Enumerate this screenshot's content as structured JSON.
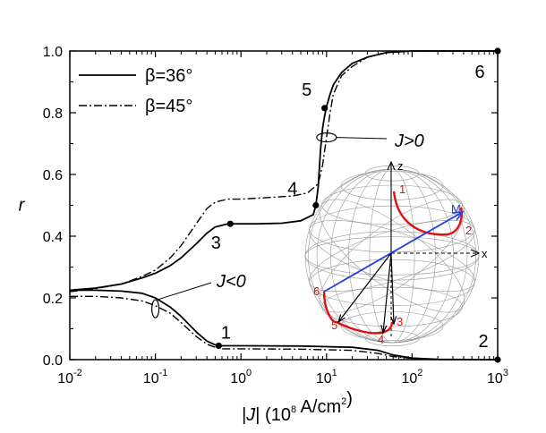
{
  "chart_data": {
    "type": "line",
    "xscale": "log",
    "xlim": [
      0.01,
      1000
    ],
    "ylim": [
      0.0,
      1.0
    ],
    "xlabel": "|J| (10^8 A/cm^2)",
    "ylabel": "r",
    "x_tick_labels": [
      {
        "value": 0.01,
        "base": "10",
        "exp": "-2"
      },
      {
        "value": 0.1,
        "base": "10",
        "exp": "-1"
      },
      {
        "value": 1,
        "base": "10",
        "exp": "0"
      },
      {
        "value": 10,
        "base": "10",
        "exp": "1"
      },
      {
        "value": 100,
        "base": "10",
        "exp": "2"
      },
      {
        "value": 1000,
        "base": "10",
        "exp": "3"
      }
    ],
    "y_ticks": [
      0.0,
      0.2,
      0.4,
      0.6,
      0.8,
      1.0
    ],
    "y_tick_labels": [
      "0.0",
      "0.2",
      "0.4",
      "0.6",
      "0.8",
      "1.0"
    ],
    "legend": [
      {
        "label": "β=36°",
        "style": "solid"
      },
      {
        "label": "β=45°",
        "style": "dash-dot"
      }
    ],
    "series": [
      {
        "name": "β=36°, J>0",
        "style": "solid",
        "x": [
          0.01,
          0.02,
          0.04,
          0.07,
          0.1,
          0.15,
          0.2,
          0.3,
          0.4,
          0.5,
          0.7,
          1,
          1.5,
          3,
          5,
          7,
          7.5,
          8,
          8.5,
          9,
          9.5,
          10,
          11,
          12,
          15,
          20,
          30,
          50,
          100,
          200,
          1000
        ],
        "y": [
          0.225,
          0.232,
          0.245,
          0.265,
          0.28,
          0.305,
          0.33,
          0.375,
          0.41,
          0.43,
          0.44,
          0.44,
          0.44,
          0.442,
          0.45,
          0.47,
          0.5,
          0.56,
          0.68,
          0.75,
          0.79,
          0.82,
          0.86,
          0.89,
          0.93,
          0.96,
          0.98,
          0.995,
          1.0,
          1.0,
          1.0
        ]
      },
      {
        "name": "β=45°, J>0",
        "style": "dash-dot",
        "x": [
          0.01,
          0.02,
          0.04,
          0.07,
          0.1,
          0.15,
          0.2,
          0.3,
          0.4,
          0.5,
          0.7,
          1,
          2,
          4,
          6,
          8,
          9,
          10,
          11,
          12,
          15,
          20,
          30,
          50,
          100,
          1000
        ],
        "y": [
          0.22,
          0.23,
          0.245,
          0.27,
          0.29,
          0.33,
          0.37,
          0.44,
          0.49,
          0.51,
          0.52,
          0.52,
          0.525,
          0.53,
          0.54,
          0.57,
          0.63,
          0.72,
          0.8,
          0.86,
          0.92,
          0.95,
          0.98,
          0.995,
          1.0,
          1.0
        ]
      },
      {
        "name": "β=36°, J<0",
        "style": "solid",
        "x": [
          0.01,
          0.02,
          0.04,
          0.07,
          0.1,
          0.15,
          0.2,
          0.3,
          0.4,
          0.5,
          0.55,
          1,
          5,
          10,
          20,
          40,
          60,
          100,
          200,
          1000
        ],
        "y": [
          0.225,
          0.225,
          0.222,
          0.215,
          0.2,
          0.17,
          0.14,
          0.09,
          0.06,
          0.048,
          0.045,
          0.045,
          0.044,
          0.042,
          0.04,
          0.03,
          0.015,
          0.005,
          0.001,
          0.0
        ]
      },
      {
        "name": "β=45°, J<0",
        "style": "dash-dot",
        "x": [
          0.01,
          0.02,
          0.04,
          0.07,
          0.1,
          0.15,
          0.2,
          0.3,
          0.4,
          0.5,
          0.6,
          1,
          5,
          10,
          20,
          40,
          60,
          100,
          200,
          1000
        ],
        "y": [
          0.205,
          0.205,
          0.2,
          0.19,
          0.175,
          0.15,
          0.12,
          0.075,
          0.05,
          0.04,
          0.035,
          0.035,
          0.034,
          0.032,
          0.03,
          0.02,
          0.01,
          0.004,
          0.001,
          0.0
        ]
      }
    ],
    "points": [
      {
        "label": "1",
        "x": 0.55,
        "y": 0.045
      },
      {
        "label": "2",
        "x": 1000,
        "y": 0.0
      },
      {
        "label": "3",
        "x": 0.75,
        "y": 0.44
      },
      {
        "label": "4",
        "x": 7.5,
        "y": 0.5
      },
      {
        "label": "5",
        "x": 9.5,
        "y": 0.815
      },
      {
        "label": "6",
        "x": 1000,
        "y": 1.0
      }
    ],
    "annotations": [
      {
        "text": "J>0",
        "ellipse_at": {
          "x": 10,
          "y": 0.72
        }
      },
      {
        "text": "J<0",
        "ellipse_at": {
          "x": 0.1,
          "y": 0.165
        }
      }
    ],
    "inset": {
      "type": "sphere",
      "axis_labels": {
        "z": "z",
        "x": "x"
      },
      "magnetization_label": "M",
      "numbers": [
        "1",
        "2",
        "3",
        "4",
        "5",
        "6"
      ],
      "colors": {
        "trajectory": "#e01010",
        "magnetization": "#2040e0",
        "numbers": "#e01010",
        "vectors": "#000000"
      }
    }
  }
}
